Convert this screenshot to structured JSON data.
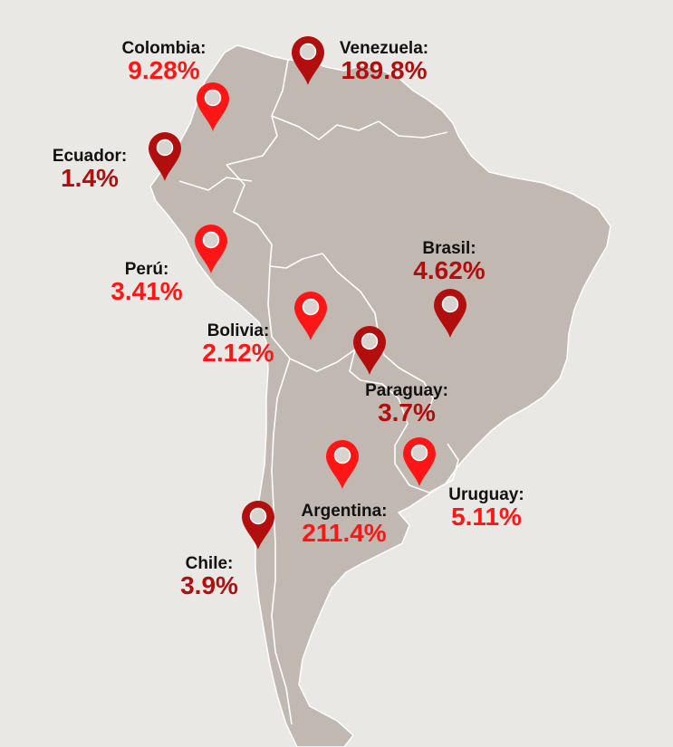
{
  "colors": {
    "background": "#eae8e5",
    "land": "#c2b8b2",
    "border": "#ffffff",
    "red": "#fe1616",
    "dark_red": "#b20e0e",
    "label": "#111111"
  },
  "pin_icon": "map-marker",
  "countries": [
    {
      "id": "colombia",
      "name": "Colombia:",
      "value": "9.28%",
      "value_color": "red",
      "pin_color": "red"
    },
    {
      "id": "venezuela",
      "name": "Venezuela:",
      "value": "189.8%",
      "value_color": "dark_red",
      "pin_color": "dark_red"
    },
    {
      "id": "ecuador",
      "name": "Ecuador:",
      "value": "1.4%",
      "value_color": "dark_red",
      "pin_color": "dark_red"
    },
    {
      "id": "peru",
      "name": "Perú:",
      "value": "3.41%",
      "value_color": "red",
      "pin_color": "red"
    },
    {
      "id": "brasil",
      "name": "Brasil:",
      "value": "4.62%",
      "value_color": "dark_red",
      "pin_color": "dark_red"
    },
    {
      "id": "bolivia",
      "name": "Bolivia:",
      "value": "2.12%",
      "value_color": "red",
      "pin_color": "red"
    },
    {
      "id": "paraguay",
      "name": "Paraguay:",
      "value": "3.7%",
      "value_color": "dark_red",
      "pin_color": "dark_red"
    },
    {
      "id": "uruguay",
      "name": "Uruguay:",
      "value": "5.11%",
      "value_color": "red",
      "pin_color": "red"
    },
    {
      "id": "argentina",
      "name": "Argentina:",
      "value": "211.4%",
      "value_color": "red",
      "pin_color": "red"
    },
    {
      "id": "chile",
      "name": "Chile:",
      "value": "3.9%",
      "value_color": "dark_red",
      "pin_color": "dark_red"
    }
  ]
}
